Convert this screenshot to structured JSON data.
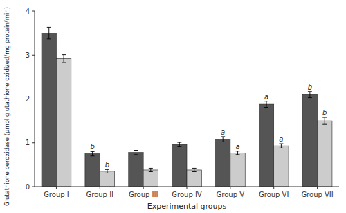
{
  "chart_data": {
    "type": "bar",
    "xlabel": "Experimental groups",
    "ylabel": "Glutathione peroxidase (µmol glutathione oxidized/mg protein/min)",
    "categories": [
      "Group I",
      "Group II",
      "Group III",
      "Group IV",
      "Group V",
      "Group VI",
      "Group VII"
    ],
    "series": [
      {
        "color": "#555555",
        "values": [
          3.5,
          0.75,
          0.78,
          0.96,
          1.08,
          1.88,
          2.1
        ],
        "errors": [
          0.13,
          0.05,
          0.05,
          0.05,
          0.06,
          0.07,
          0.07
        ],
        "annotations": [
          null,
          "b",
          null,
          null,
          "a",
          "a",
          "b"
        ]
      },
      {
        "color": "#cccccc",
        "values": [
          2.92,
          0.35,
          0.38,
          0.38,
          0.77,
          0.93,
          1.5
        ],
        "errors": [
          0.09,
          0.04,
          0.04,
          0.04,
          0.04,
          0.05,
          0.08
        ],
        "annotations": [
          null,
          "b",
          null,
          null,
          "a",
          "a",
          "b"
        ]
      }
    ],
    "ylim": [
      0,
      4
    ],
    "yticks": [
      0,
      1,
      2,
      3,
      4
    ],
    "grid": false
  }
}
